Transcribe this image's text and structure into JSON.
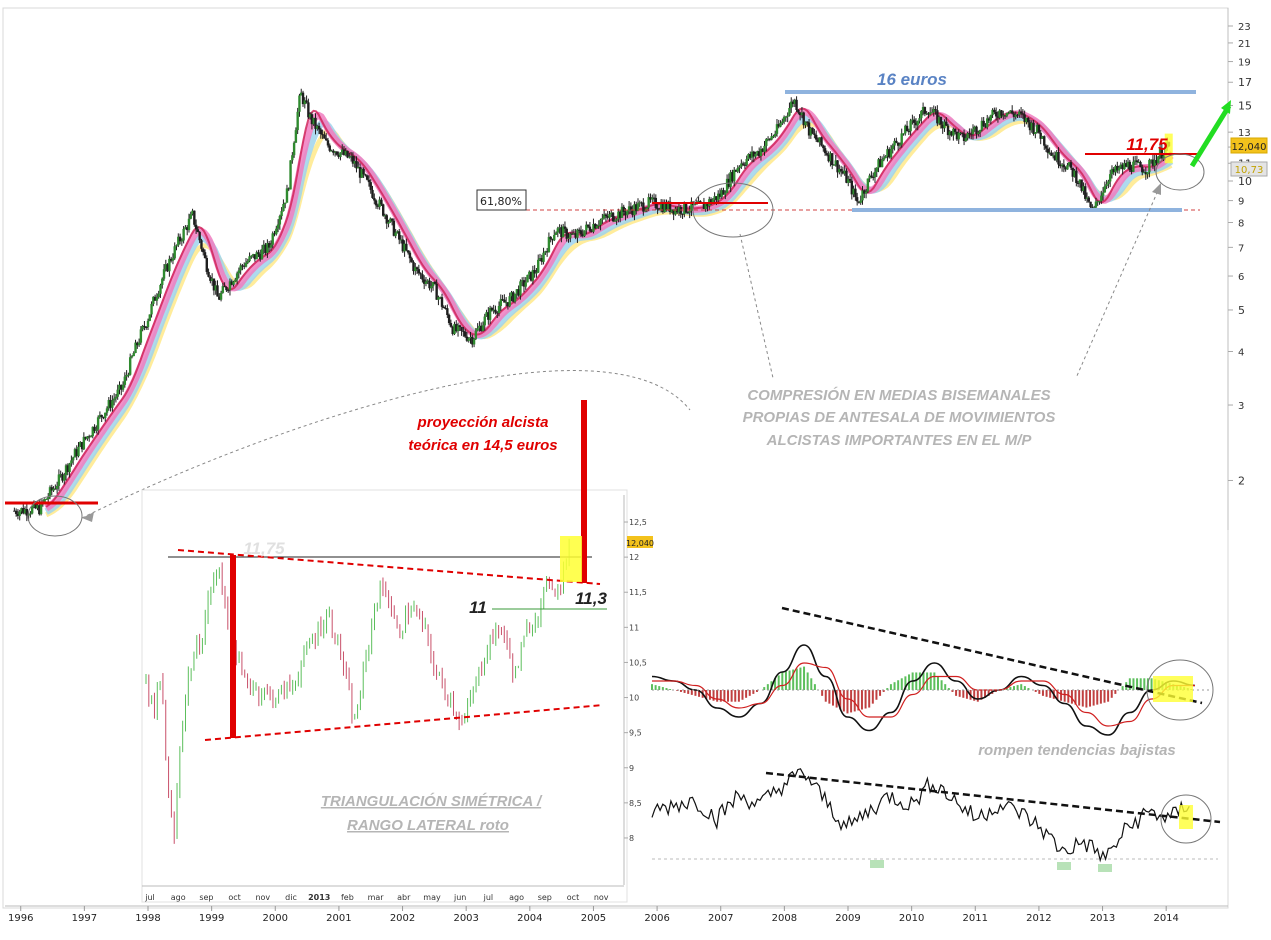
{
  "chart_data": [
    {
      "type": "line",
      "role": "main-price-chart",
      "log_scale": true,
      "ylim": [
        1.6,
        23
      ],
      "xlim": [
        1995.5,
        2014.2
      ],
      "y_ticks": [
        "23",
        "21",
        "19",
        "17",
        "15",
        "13",
        "12",
        "11",
        "10",
        "9",
        "8",
        "7",
        "6",
        "5",
        "4",
        "3",
        "2"
      ],
      "x_ticks": [
        "1996",
        "1997",
        "1998",
        "1999",
        "2000",
        "2001",
        "2002",
        "2003",
        "2004",
        "2005",
        "2006",
        "2007",
        "2008",
        "2009",
        "2010",
        "2011",
        "2012",
        "2013",
        "2014"
      ],
      "price_path": [
        [
          1995.6,
          1.7
        ],
        [
          1996.0,
          1.72
        ],
        [
          1996.3,
          2.0
        ],
        [
          1996.8,
          2.6
        ],
        [
          1997.3,
          3.3
        ],
        [
          1997.7,
          4.8
        ],
        [
          1998.1,
          6.8
        ],
        [
          1998.4,
          8.3
        ],
        [
          1998.6,
          6.5
        ],
        [
          1998.8,
          5.3
        ],
        [
          1999.2,
          6.4
        ],
        [
          1999.6,
          7.0
        ],
        [
          1999.9,
          9.5
        ],
        [
          2000.1,
          16.0
        ],
        [
          2000.25,
          14.0
        ],
        [
          2000.5,
          12.2
        ],
        [
          2000.9,
          11.2
        ],
        [
          2001.3,
          9.0
        ],
        [
          2001.6,
          7.5
        ],
        [
          2001.9,
          6.2
        ],
        [
          2002.2,
          5.6
        ],
        [
          2002.5,
          4.5
        ],
        [
          2002.8,
          4.3
        ],
        [
          2003.1,
          5.0
        ],
        [
          2003.4,
          5.3
        ],
        [
          2003.8,
          6.2
        ],
        [
          2004.1,
          7.7
        ],
        [
          2004.4,
          7.4
        ],
        [
          2004.8,
          8.1
        ],
        [
          2005.2,
          8.5
        ],
        [
          2005.6,
          8.9
        ],
        [
          2006.0,
          8.6
        ],
        [
          2006.4,
          8.7
        ],
        [
          2006.7,
          9.3
        ],
        [
          2007.0,
          11.0
        ],
        [
          2007.3,
          11.7
        ],
        [
          2007.6,
          13.2
        ],
        [
          2007.85,
          15.5
        ],
        [
          2008.1,
          13.0
        ],
        [
          2008.4,
          11.5
        ],
        [
          2008.7,
          10.0
        ],
        [
          2008.85,
          8.9
        ],
        [
          2009.1,
          10.5
        ],
        [
          2009.4,
          12.0
        ],
        [
          2009.7,
          13.5
        ],
        [
          2009.95,
          14.8
        ],
        [
          2010.2,
          13.5
        ],
        [
          2010.5,
          12.5
        ],
        [
          2010.8,
          13.6
        ],
        [
          2011.1,
          14.6
        ],
        [
          2011.4,
          14.2
        ],
        [
          2011.7,
          13.0
        ],
        [
          2011.9,
          11.6
        ],
        [
          2012.1,
          11.0
        ],
        [
          2012.3,
          10.2
        ],
        [
          2012.45,
          9.0
        ],
        [
          2012.55,
          8.4
        ],
        [
          2012.8,
          10.3
        ],
        [
          2013.1,
          10.9
        ],
        [
          2013.4,
          10.7
        ],
        [
          2013.6,
          11.6
        ],
        [
          2013.75,
          12.04
        ]
      ],
      "current_price": "12,040",
      "secondary_price_tag": "10,73",
      "upper_level_label": "16 euros",
      "upper_level_value": 16,
      "lower_level_value": 8.6,
      "breakout_label": "11,75",
      "breakout_value": 11.75,
      "fibo_label": "61,80%",
      "fibo_value": 8.6,
      "early_level_value": 1.8,
      "mid_level_value": 9.0,
      "colors": {
        "price": "#2b2b2b",
        "ribbon_yellow": "#ffe98a",
        "ribbon_blue": "#9fd4ec",
        "ribbon_pink": "#f07cc0",
        "ribbon_red": "#d0245a",
        "level_red": "#e00000",
        "level_blue": "#7fa8d8",
        "arrow_green": "#22dd22"
      }
    },
    {
      "type": "line",
      "role": "inset-2013-daily",
      "ylim": [
        7.8,
        12.6
      ],
      "y_ticks": [
        "12,5",
        "12",
        "11,5",
        "11",
        "10,5",
        "10",
        "9,5",
        "9",
        "8,5",
        "8"
      ],
      "x_ticks": [
        "jul",
        "ago",
        "sep",
        "oct",
        "nov",
        "dic",
        "2013",
        "feb",
        "mar",
        "abr",
        "may",
        "jun",
        "jul",
        "ago",
        "sep",
        "oct",
        "nov"
      ],
      "price_path": [
        [
          0.0,
          10.2
        ],
        [
          0.02,
          9.7
        ],
        [
          0.03,
          10.3
        ],
        [
          0.04,
          9.9
        ],
        [
          0.05,
          8.6
        ],
        [
          0.065,
          8.0
        ],
        [
          0.08,
          9.5
        ],
        [
          0.1,
          10.4
        ],
        [
          0.13,
          10.9
        ],
        [
          0.15,
          11.6
        ],
        [
          0.17,
          11.8
        ],
        [
          0.19,
          11.1
        ],
        [
          0.22,
          10.3
        ],
        [
          0.26,
          10.1
        ],
        [
          0.3,
          10.0
        ],
        [
          0.34,
          10.2
        ],
        [
          0.38,
          10.8
        ],
        [
          0.42,
          11.2
        ],
        [
          0.45,
          10.6
        ],
        [
          0.48,
          9.6
        ],
        [
          0.5,
          10.3
        ],
        [
          0.53,
          11.4
        ],
        [
          0.55,
          11.6
        ],
        [
          0.58,
          10.9
        ],
        [
          0.61,
          11.3
        ],
        [
          0.64,
          11.0
        ],
        [
          0.67,
          10.3
        ],
        [
          0.7,
          10.0
        ],
        [
          0.73,
          9.6
        ],
        [
          0.76,
          10.2
        ],
        [
          0.79,
          10.8
        ],
        [
          0.82,
          11.0
        ],
        [
          0.85,
          10.3
        ],
        [
          0.88,
          11.0
        ],
        [
          0.91,
          11.3
        ],
        [
          0.93,
          11.7
        ],
        [
          0.95,
          11.5
        ],
        [
          0.97,
          12.04
        ]
      ],
      "current_price": "12,040",
      "resistance_label": "11,75",
      "support_label": "11",
      "break_label": "11,3",
      "target_label_line1": "proyección alcista",
      "target_label_line2": "teórica en 14,5 euros",
      "pattern_label_line1": "TRIANGULACIÓN SIMÉTRICA /",
      "pattern_label_line2": "RANGO LATERAL roto"
    },
    {
      "type": "line",
      "role": "oscillator-macd",
      "series": [
        {
          "values": [
            0.3,
            0.2,
            0.0,
            -0.4,
            -0.6,
            -0.3,
            0.4,
            1.0,
            0.3,
            -0.6,
            -0.9,
            -0.5,
            0.2,
            0.6,
            0.2,
            -0.2,
            0.0,
            0.3,
            0.1,
            -0.3,
            -0.8,
            -1.0,
            -0.5,
            0.0,
            0.2,
            0.1
          ]
        },
        {
          "values": [
            0.2,
            0.2,
            0.1,
            -0.2,
            -0.4,
            -0.3,
            0.1,
            0.6,
            0.5,
            -0.2,
            -0.6,
            -0.6,
            -0.1,
            0.3,
            0.3,
            0.0,
            0.0,
            0.2,
            0.2,
            -0.1,
            -0.5,
            -0.8,
            -0.7,
            -0.2,
            0.1,
            0.1
          ]
        }
      ]
    },
    {
      "type": "line",
      "role": "oscillator-rsi",
      "series": [
        {
          "values": [
            55,
            58,
            60,
            52,
            62,
            58,
            66,
            72,
            60,
            48,
            55,
            62,
            58,
            68,
            60,
            52,
            58,
            55,
            48,
            38,
            42,
            35,
            48,
            55,
            52,
            60
          ]
        }
      ]
    }
  ],
  "annotations": {
    "compression_line1": "COMPRESIÓN EN MEDIAS BISEMANALES",
    "compression_line2": "PROPIAS DE ANTESALA DE MOVIMIENTOS",
    "compression_line3": "ALCISTAS IMPORTANTES EN EL M/P",
    "trend_break": "rompen tendencias bajistas"
  }
}
